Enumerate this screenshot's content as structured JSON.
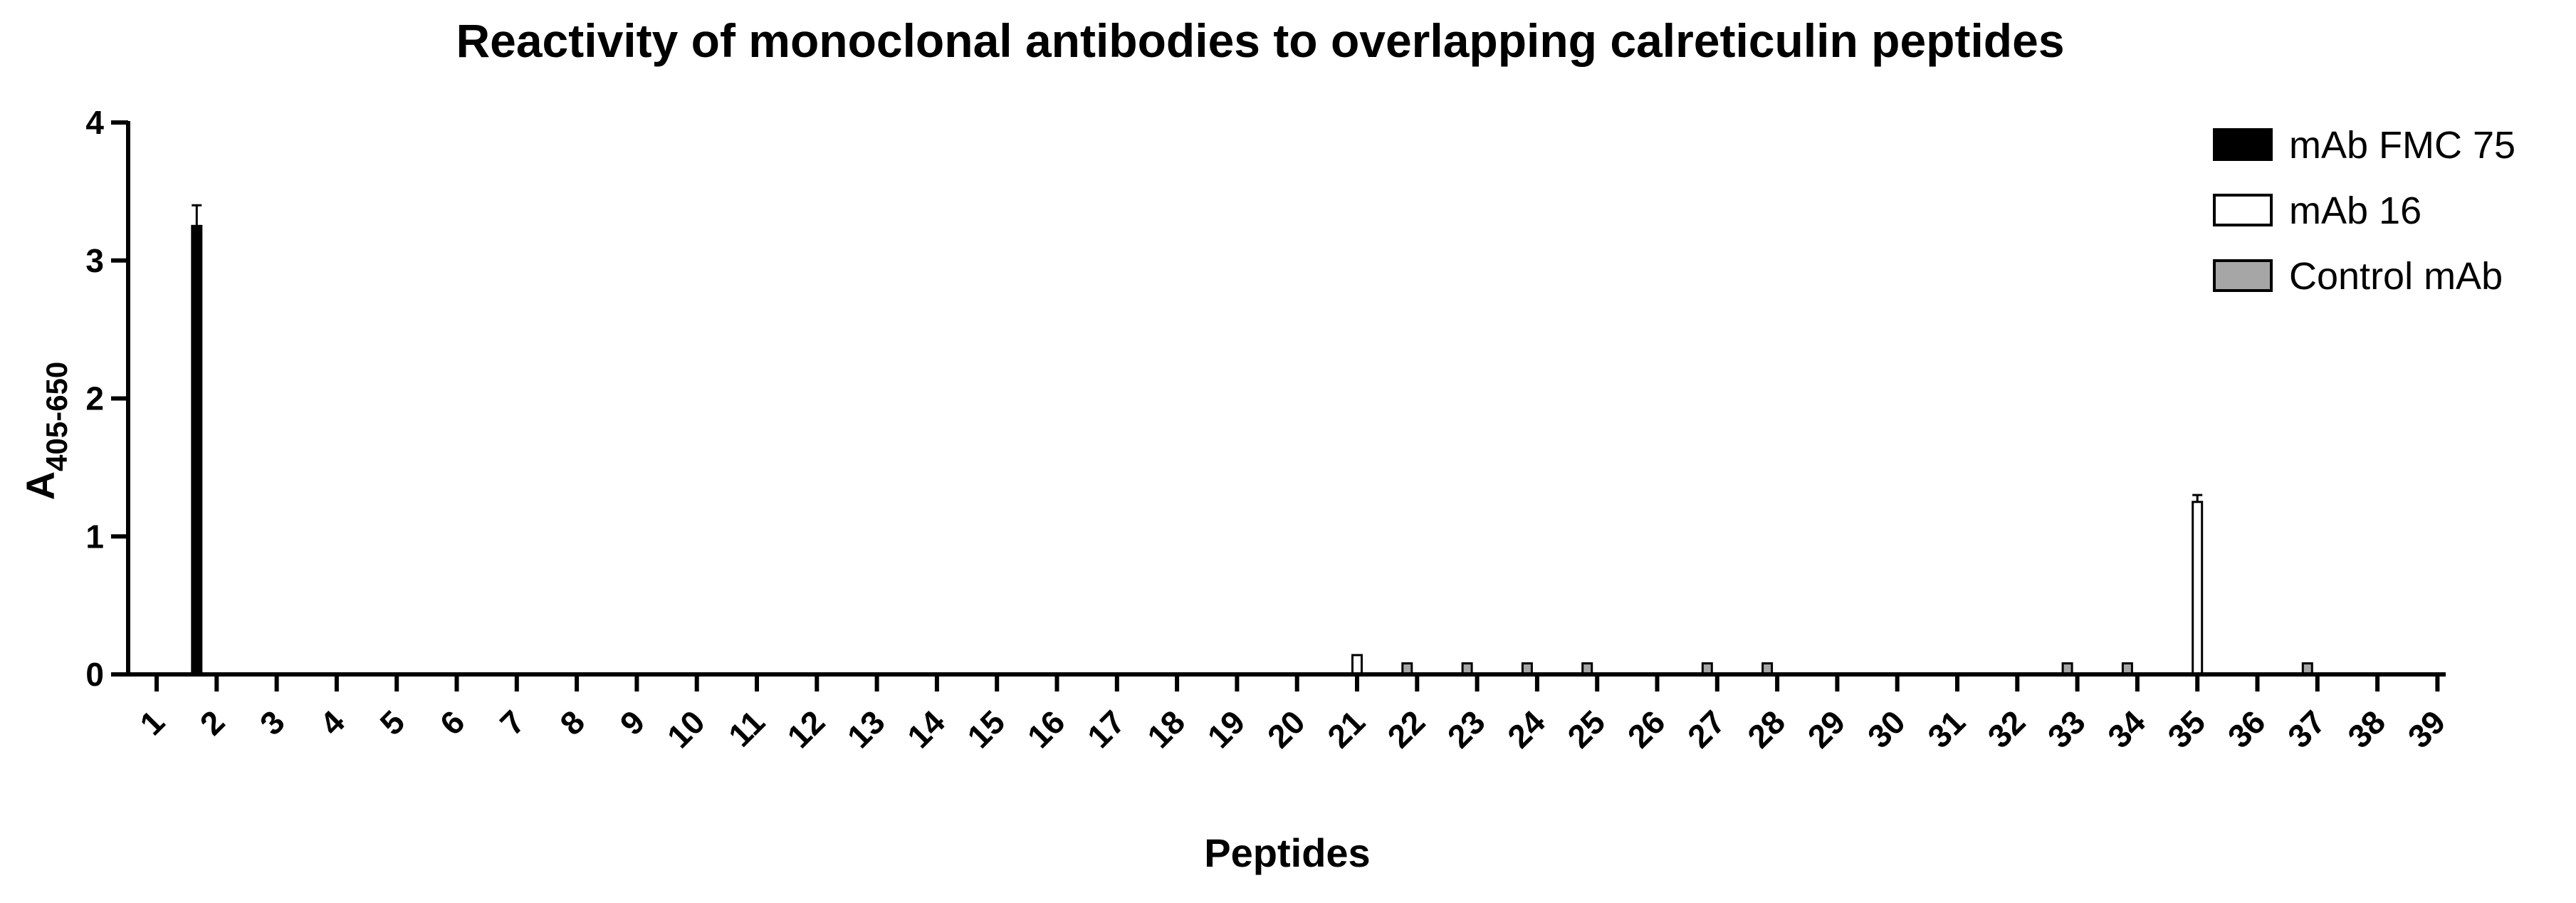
{
  "chart_data": {
    "type": "bar",
    "title": "Reactivity of monoclonal antibodies to overlapping calreticulin peptides",
    "xlabel": "Peptides",
    "ylabel": "A",
    "ylabel_subscript": "405-650",
    "ylim": [
      0,
      4
    ],
    "yticks": [
      "0",
      "1",
      "2",
      "3",
      "4"
    ],
    "grid": false,
    "legend_position": "top-right",
    "categories": [
      "1",
      "2",
      "3",
      "4",
      "5",
      "6",
      "7",
      "8",
      "9",
      "10",
      "11",
      "12",
      "13",
      "14",
      "15",
      "16",
      "17",
      "18",
      "19",
      "20",
      "21",
      "22",
      "23",
      "24",
      "25",
      "26",
      "27",
      "28",
      "29",
      "30",
      "31",
      "32",
      "33",
      "34",
      "35",
      "36",
      "37",
      "38",
      "39"
    ],
    "series": [
      {
        "name": "mAb FMC 75",
        "color": "#000000",
        "values": [
          0,
          3.25,
          0,
          0,
          0,
          0,
          0,
          0,
          0,
          0,
          0,
          0,
          0,
          0,
          0,
          0,
          0,
          0,
          0,
          0,
          0,
          0,
          0,
          0,
          0,
          0,
          0,
          0,
          0,
          0,
          0,
          0,
          0,
          0,
          0,
          0,
          0,
          0,
          0
        ],
        "errors": [
          0,
          0.15,
          0,
          0,
          0,
          0,
          0,
          0,
          0,
          0,
          0,
          0,
          0,
          0,
          0,
          0,
          0,
          0,
          0,
          0,
          0,
          0,
          0,
          0,
          0,
          0,
          0,
          0,
          0,
          0,
          0,
          0,
          0,
          0,
          0,
          0,
          0,
          0,
          0
        ]
      },
      {
        "name": "mAb 16",
        "color": "#ffffff",
        "values": [
          0,
          0,
          0,
          0,
          0,
          0,
          0,
          0,
          0,
          0,
          0,
          0,
          0,
          0,
          0,
          0,
          0,
          0,
          0,
          0,
          0.14,
          0,
          0,
          0,
          0,
          0,
          0,
          0,
          0,
          0,
          0,
          0,
          0,
          0,
          1.25,
          0,
          0,
          0,
          0
        ],
        "errors": [
          0,
          0,
          0,
          0,
          0,
          0,
          0,
          0,
          0,
          0,
          0,
          0,
          0,
          0,
          0,
          0,
          0,
          0,
          0,
          0,
          0,
          0,
          0,
          0,
          0,
          0,
          0,
          0,
          0,
          0,
          0,
          0,
          0,
          0,
          0.05,
          0,
          0,
          0,
          0
        ]
      },
      {
        "name": "Control mAb",
        "color": "#a6a6a6",
        "values": [
          0,
          0,
          0,
          0,
          0,
          0,
          0,
          0,
          0,
          0,
          0,
          0,
          0,
          0,
          0,
          0,
          0,
          0,
          0,
          0,
          0,
          0.08,
          0.08,
          0.08,
          0.08,
          0,
          0.08,
          0.08,
          0,
          0,
          0,
          0,
          0.08,
          0.08,
          0,
          0,
          0.08,
          0,
          0
        ],
        "errors": [
          0,
          0,
          0,
          0,
          0,
          0,
          0,
          0,
          0,
          0,
          0,
          0,
          0,
          0,
          0,
          0,
          0,
          0,
          0,
          0,
          0,
          0,
          0,
          0,
          0,
          0,
          0,
          0,
          0,
          0,
          0,
          0,
          0,
          0,
          0,
          0,
          0,
          0,
          0
        ]
      }
    ]
  }
}
